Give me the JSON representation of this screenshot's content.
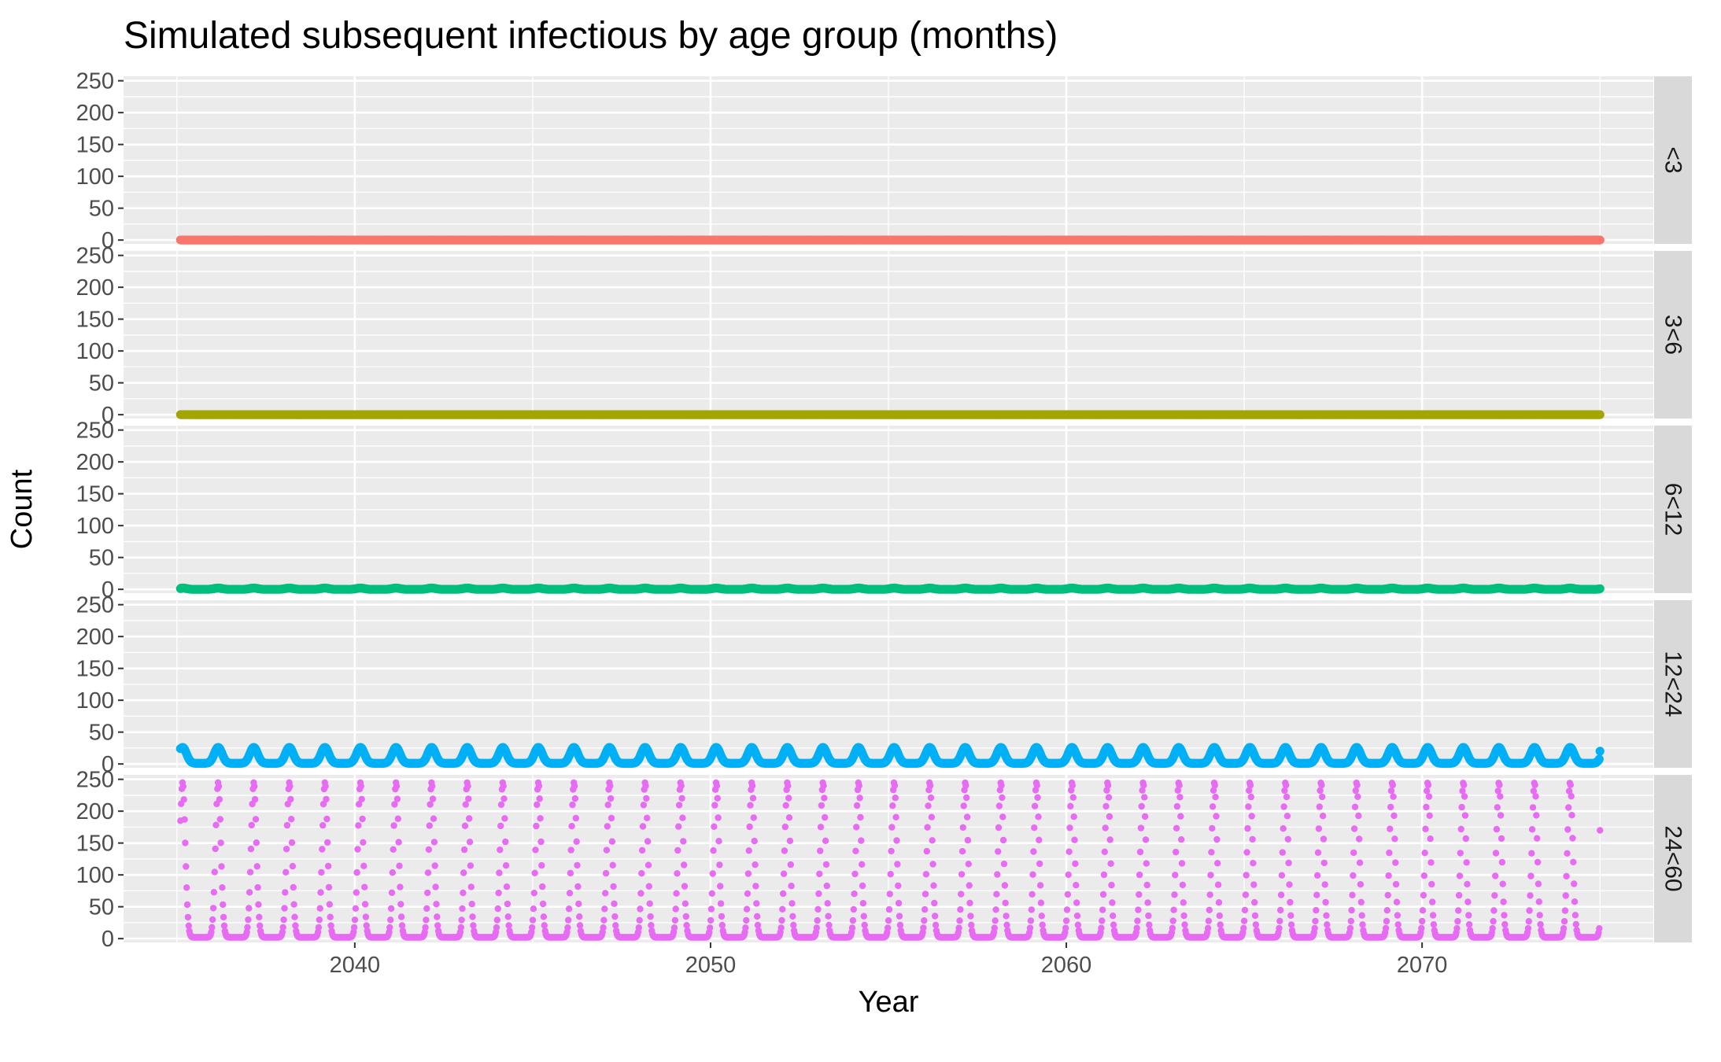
{
  "chart_data": {
    "type": "scatter",
    "title": "Simulated subsequent infectious by age group (months)",
    "xlabel": "Year",
    "ylabel": "Count",
    "xlim": [
      2033.5,
      2076.5
    ],
    "ylim": [
      -6,
      257
    ],
    "x_ticks": [
      2040,
      2050,
      2060,
      2070
    ],
    "y_ticks": [
      0,
      50,
      100,
      150,
      200,
      250
    ],
    "x_range": [
      2035.1,
      2075.0
    ],
    "points_per_year": 52,
    "period_years": 1,
    "facet_direction": "rows",
    "strip_position": "right",
    "legend": "none",
    "grid": true,
    "panel_background": "#ebebeb",
    "strip_background": "#d9d9d9",
    "grid_color": "#ffffff",
    "series": [
      {
        "name": "<3",
        "color": "#F8766D",
        "min": 0,
        "max": 0,
        "first_value": 0,
        "last_value": 0
      },
      {
        "name": "3<6",
        "color": "#A3A500",
        "min": 0,
        "max": 0,
        "first_value": 0,
        "last_value": 0
      },
      {
        "name": "6<12",
        "color": "#00BF7D",
        "min": 0,
        "max": 2,
        "first_value": 1,
        "last_value": 1
      },
      {
        "name": "12<24",
        "color": "#00B0F6",
        "min": 1,
        "max": 26,
        "first_value": 24,
        "last_value": 20
      },
      {
        "name": "24<60",
        "color": "#E76BF3",
        "min": 2,
        "max": 245,
        "first_value": 185,
        "last_value": 170
      }
    ]
  }
}
